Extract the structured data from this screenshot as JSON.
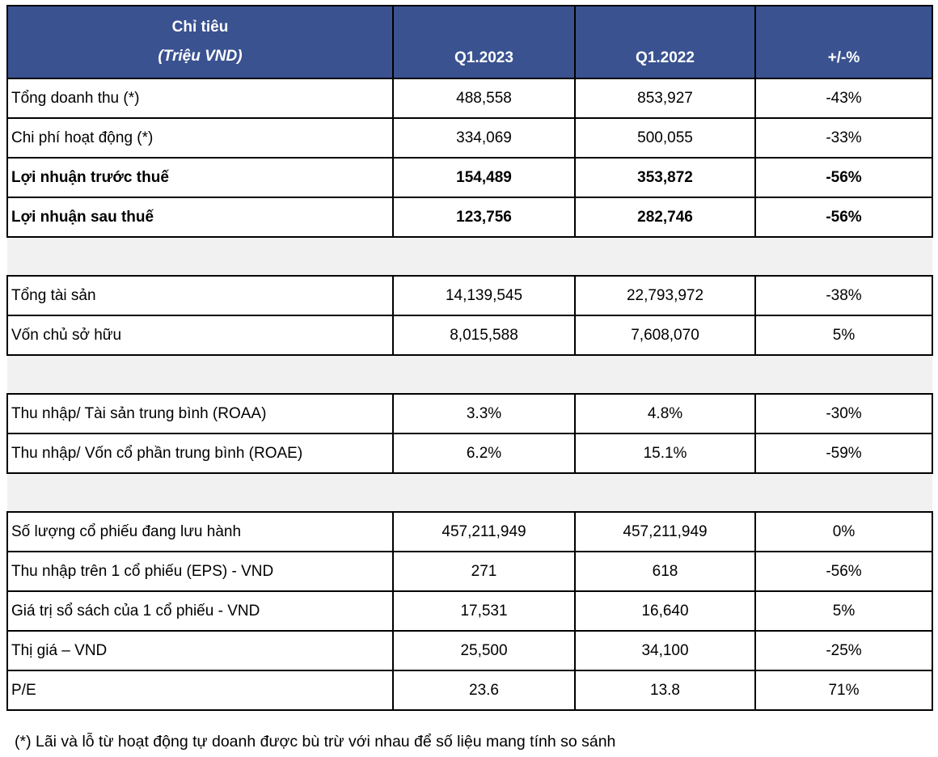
{
  "colors": {
    "header_bg": "#3A5290",
    "header_text": "#FFFFFF",
    "separator_bg": "#F1F1F1",
    "border": "#000000"
  },
  "header": {
    "title": "Chỉ tiêu",
    "subtitle": "(Triệu VND)",
    "columns": [
      "Q1.2023",
      "Q1.2022",
      "+/-%"
    ]
  },
  "rows": [
    {
      "label": "Tổng doanh thu (*)",
      "q1_2023": "488,558",
      "q1_2022": "853,927",
      "change": "-43%"
    },
    {
      "label": "Chi phí hoạt động (*)",
      "q1_2023": "334,069",
      "q1_2022": "500,055",
      "change": "-33%"
    },
    {
      "label": "Lợi nhuận trước thuế",
      "q1_2023": "154,489",
      "q1_2022": "353,872",
      "change": "-56%",
      "emphasis": true
    },
    {
      "label": "Lợi nhuận sau thuế",
      "q1_2023": "123,756",
      "q1_2022": "282,746",
      "change": "-56%",
      "emphasis": true
    },
    {
      "label": "Tổng tài sản",
      "q1_2023": "14,139,545",
      "q1_2022": "22,793,972",
      "change": "-38%"
    },
    {
      "label": "Vốn chủ sở hữu",
      "q1_2023": "8,015,588",
      "q1_2022": "7,608,070",
      "change": "5%"
    },
    {
      "label": "Thu nhập/ Tài sản trung bình (ROAA)",
      "q1_2023": "3.3%",
      "q1_2022": "4.8%",
      "change": "-30%"
    },
    {
      "label": "Thu nhập/ Vốn cổ phần trung bình (ROAE)",
      "q1_2023": "6.2%",
      "q1_2022": "15.1%",
      "change": "-59%"
    },
    {
      "label": "Số lượng cổ phiếu đang lưu hành",
      "q1_2023": "457,211,949",
      "q1_2022": "457,211,949",
      "change": "0%"
    },
    {
      "label": "Thu nhập trên 1 cổ phiếu (EPS) - VND",
      "q1_2023": "271",
      "q1_2022": "618",
      "change": "-56%"
    },
    {
      "label": "Giá trị sổ sách của 1 cổ phiếu - VND",
      "q1_2023": "17,531",
      "q1_2022": "16,640",
      "change": "5%"
    },
    {
      "label": "Thị giá – VND",
      "q1_2023": "25,500",
      "q1_2022": "34,100",
      "change": "-25%"
    },
    {
      "label": "P/E",
      "q1_2023": "23.6",
      "q1_2022": "13.8",
      "change": "71%"
    }
  ],
  "footnote": "(*) Lãi và lỗ từ hoạt động tự doanh được bù trừ với nhau để số liệu mang tính so sánh"
}
